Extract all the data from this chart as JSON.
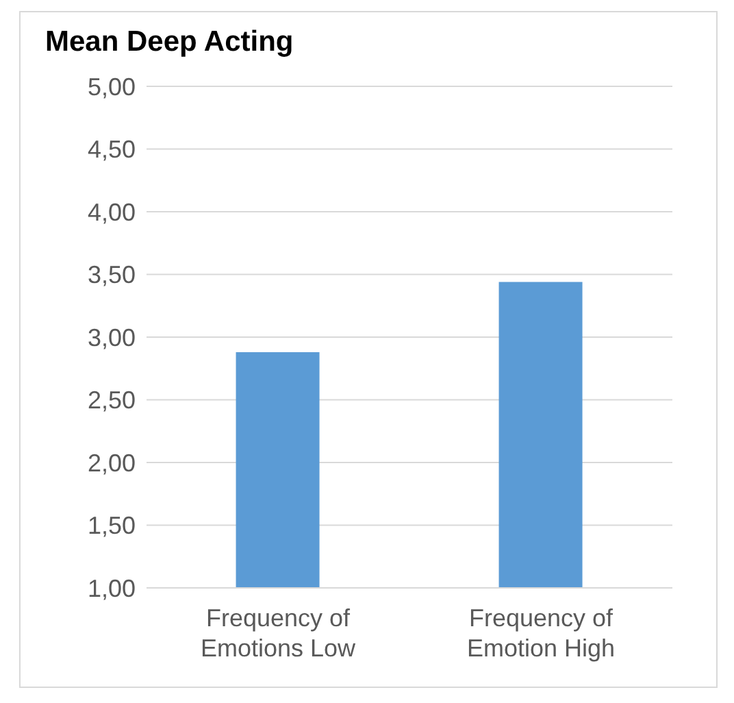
{
  "chart_data": {
    "type": "bar",
    "title": "Mean Deep Acting",
    "categories": [
      "Frequency of Emotions Low",
      "Frequency of Emotion High"
    ],
    "values": [
      2.88,
      3.44
    ],
    "color": "#5b9bd5",
    "ylim": [
      1,
      5
    ],
    "yticks": [
      {
        "value": 1,
        "label": "1,00"
      },
      {
        "value": 1.5,
        "label": "1,50"
      },
      {
        "value": 2,
        "label": "2,00"
      },
      {
        "value": 2.5,
        "label": "2,50"
      },
      {
        "value": 3,
        "label": "3,00"
      },
      {
        "value": 3.5,
        "label": "3,50"
      },
      {
        "value": 4,
        "label": "4,00"
      },
      {
        "value": 4.5,
        "label": "4,50"
      },
      {
        "value": 5,
        "label": "5,00"
      }
    ],
    "grid": "y",
    "legend": false
  }
}
